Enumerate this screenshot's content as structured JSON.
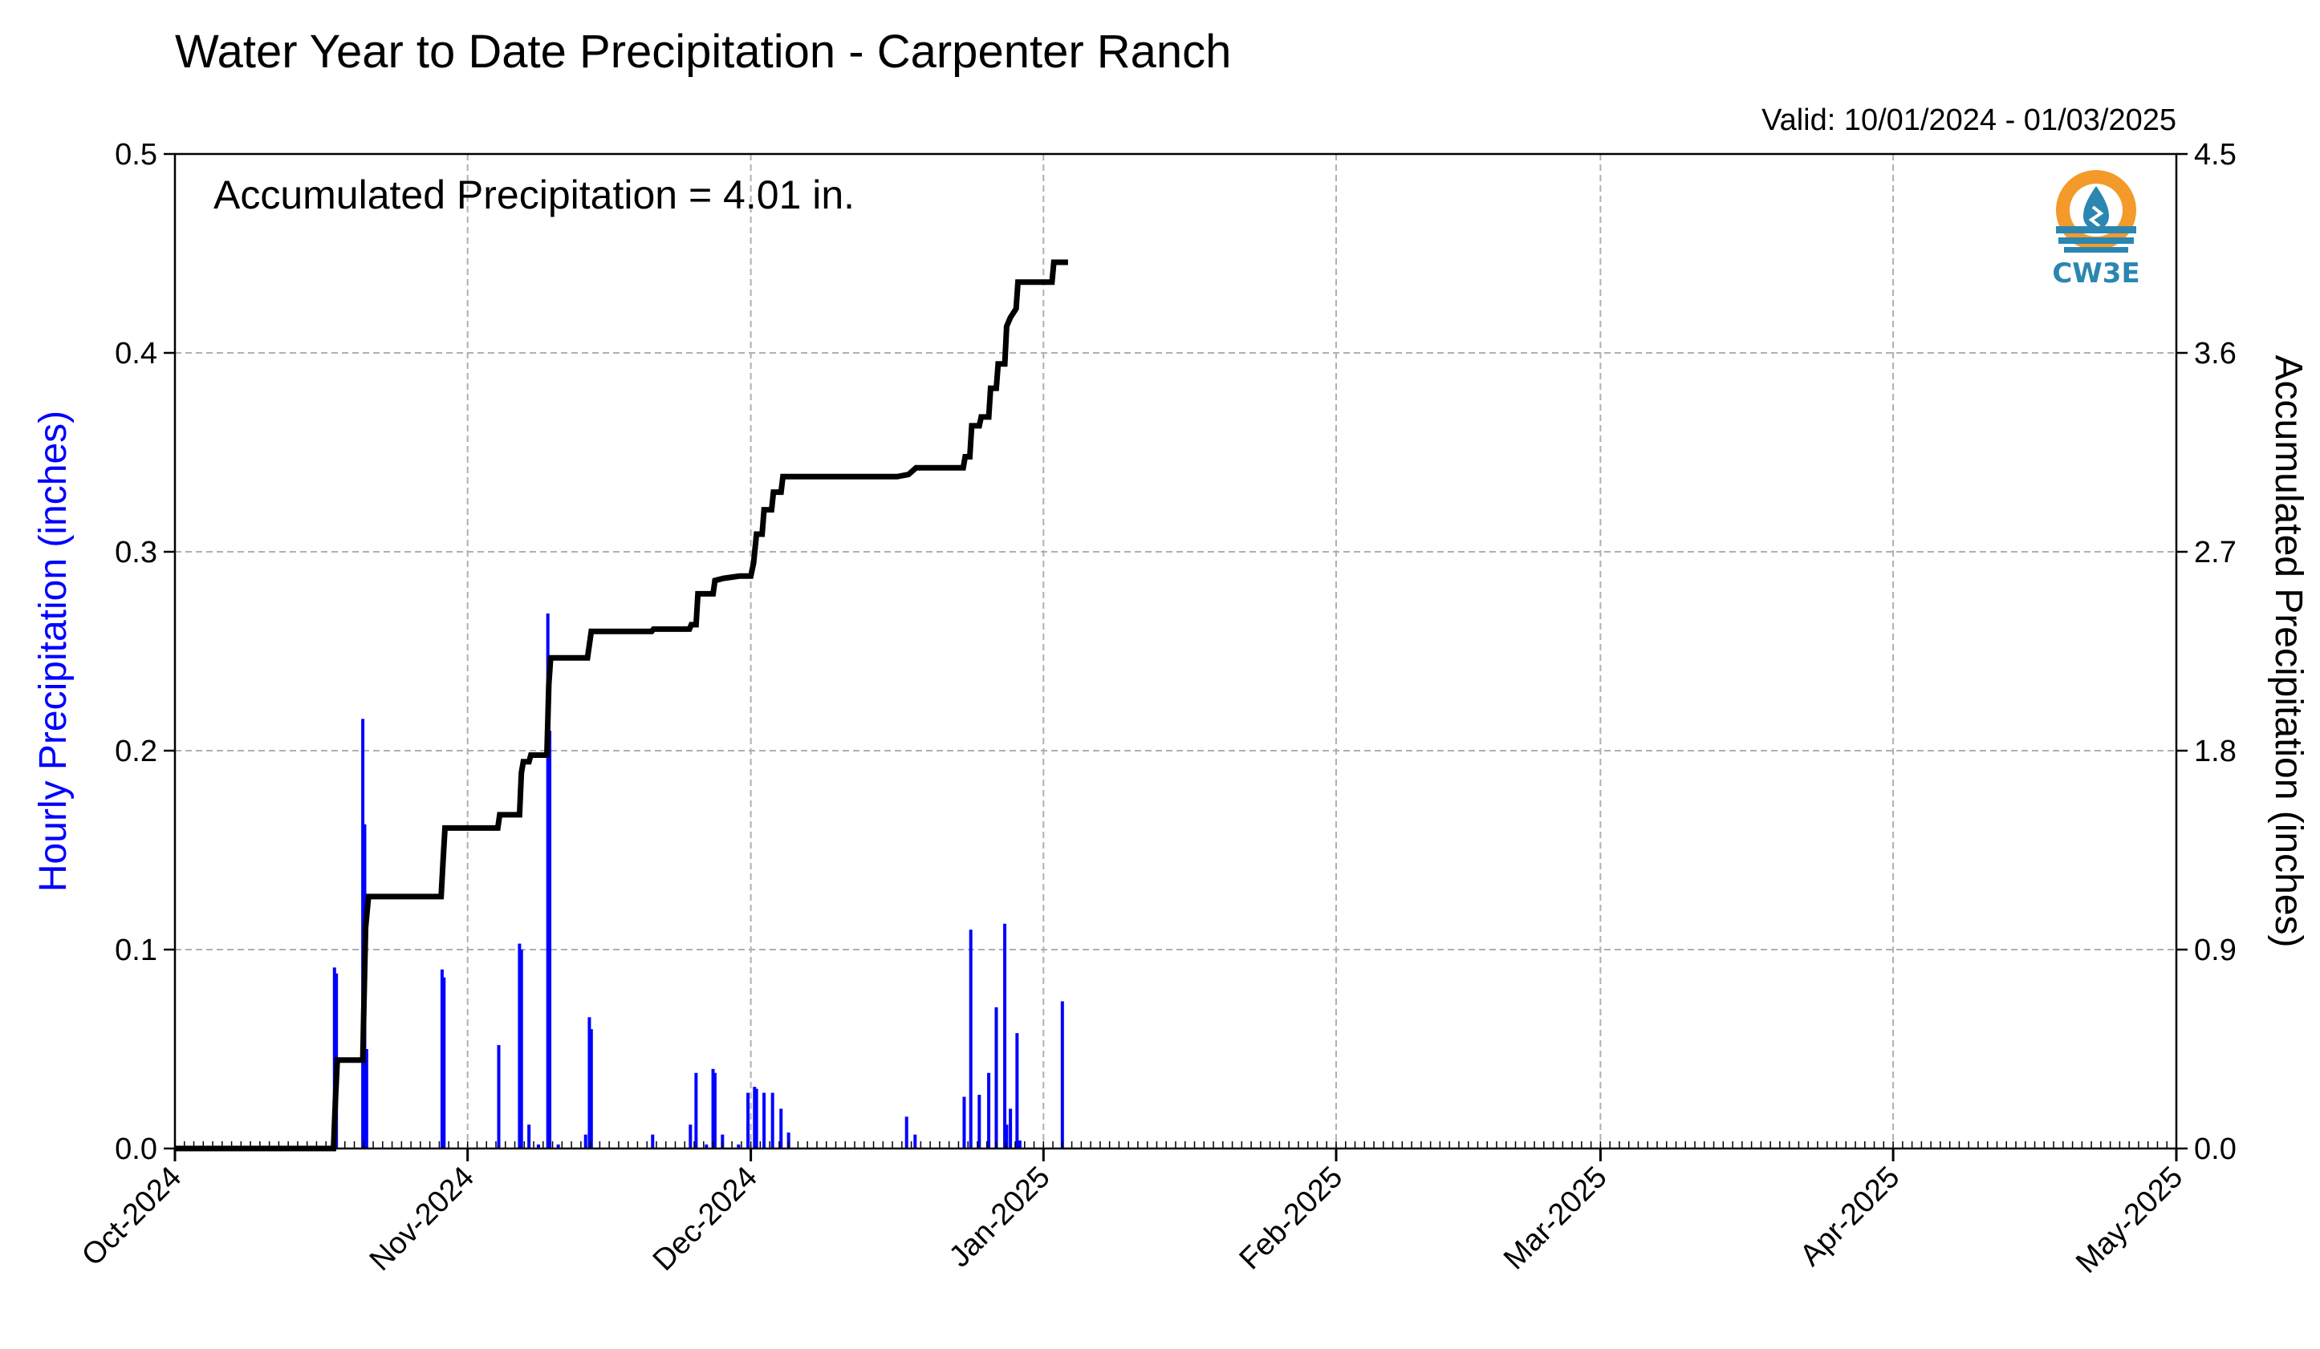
{
  "chart_data": {
    "type": "bar+line",
    "title": "Water Year to Date Precipitation - Carpenter Ranch",
    "subtitle": "Valid: 10/01/2024 - 01/03/2025",
    "annotation": "Accumulated Precipitation = 4.01 in.",
    "logo_text": "CW3E",
    "ylabel_left": "Hourly Precipitation (inches)",
    "ylabel_right": "Accumulated Precipitation (inches)",
    "ylim_left": [
      0,
      0.5
    ],
    "ylim_right": [
      0,
      4.5
    ],
    "yticks_left": [
      "0.0",
      "0.1",
      "0.2",
      "0.3",
      "0.4",
      "0.5"
    ],
    "yticks_right": [
      "0.0",
      "0.9",
      "1.8",
      "2.7",
      "3.6",
      "4.5"
    ],
    "xlim_days": [
      0,
      212
    ],
    "xticks": [
      {
        "day": 0,
        "label": "Oct-2024"
      },
      {
        "day": 31,
        "label": "Nov-2024"
      },
      {
        "day": 61,
        "label": "Dec-2024"
      },
      {
        "day": 92,
        "label": "Jan-2025"
      },
      {
        "day": 123,
        "label": "Feb-2025"
      },
      {
        "day": 151,
        "label": "Mar-2025"
      },
      {
        "day": 182,
        "label": "Apr-2025"
      },
      {
        "day": 212,
        "label": "May-2025"
      }
    ],
    "grid": true,
    "colors": {
      "bars": "#0000ff",
      "line": "#000000",
      "left_label": "#0000ff",
      "right_label": "#000000",
      "grid": "#b0b0b0"
    },
    "series": [
      {
        "kind": "bar",
        "axis": "left",
        "points": [
          [
            16.9,
            0.091
          ],
          [
            17.1,
            0.088
          ],
          [
            19.9,
            0.216
          ],
          [
            20.1,
            0.163
          ],
          [
            20.3,
            0.05
          ],
          [
            28.3,
            0.09
          ],
          [
            28.5,
            0.086
          ],
          [
            34.3,
            0.052
          ],
          [
            36.5,
            0.103
          ],
          [
            36.7,
            0.1
          ],
          [
            37.5,
            0.012
          ],
          [
            38.5,
            0.002
          ],
          [
            39.5,
            0.269
          ],
          [
            39.7,
            0.21
          ],
          [
            40.6,
            0.002
          ],
          [
            43.5,
            0.007
          ],
          [
            43.9,
            0.066
          ],
          [
            44.1,
            0.06
          ],
          [
            50.6,
            0.007
          ],
          [
            54.6,
            0.012
          ],
          [
            55.2,
            0.038
          ],
          [
            56.3,
            0.002
          ],
          [
            57.0,
            0.04
          ],
          [
            57.2,
            0.038
          ],
          [
            58.0,
            0.007
          ],
          [
            59.7,
            0.002
          ],
          [
            60.7,
            0.028
          ],
          [
            61.4,
            0.031
          ],
          [
            61.6,
            0.03
          ],
          [
            62.4,
            0.028
          ],
          [
            63.3,
            0.028
          ],
          [
            64.2,
            0.02
          ],
          [
            65.0,
            0.008
          ],
          [
            77.5,
            0.016
          ],
          [
            78.4,
            0.007
          ],
          [
            83.6,
            0.026
          ],
          [
            84.3,
            0.11
          ],
          [
            85.2,
            0.027
          ],
          [
            86.2,
            0.038
          ],
          [
            87.0,
            0.071
          ],
          [
            87.9,
            0.113
          ],
          [
            88.1,
            0.012
          ],
          [
            88.5,
            0.02
          ],
          [
            89.2,
            0.058
          ],
          [
            89.5,
            0.004
          ],
          [
            94.0,
            0.074
          ]
        ]
      },
      {
        "kind": "line",
        "axis": "right",
        "points": [
          [
            0,
            0
          ],
          [
            16.8,
            0
          ],
          [
            17.0,
            0.22
          ],
          [
            17.2,
            0.4
          ],
          [
            19.9,
            0.4
          ],
          [
            20.0,
            0.62
          ],
          [
            20.2,
            1.0
          ],
          [
            20.5,
            1.14
          ],
          [
            28.2,
            1.14
          ],
          [
            28.4,
            1.3
          ],
          [
            28.6,
            1.45
          ],
          [
            34.2,
            1.45
          ],
          [
            34.4,
            1.51
          ],
          [
            36.5,
            1.51
          ],
          [
            36.7,
            1.7
          ],
          [
            36.9,
            1.75
          ],
          [
            37.5,
            1.75
          ],
          [
            37.7,
            1.78
          ],
          [
            39.4,
            1.78
          ],
          [
            39.6,
            2.1
          ],
          [
            39.8,
            2.22
          ],
          [
            43.7,
            2.22
          ],
          [
            44.1,
            2.34
          ],
          [
            50.5,
            2.34
          ],
          [
            50.7,
            2.35
          ],
          [
            54.5,
            2.35
          ],
          [
            54.7,
            2.37
          ],
          [
            55.2,
            2.37
          ],
          [
            55.4,
            2.51
          ],
          [
            57.0,
            2.51
          ],
          [
            57.2,
            2.57
          ],
          [
            58.1,
            2.58
          ],
          [
            59.8,
            2.59
          ],
          [
            61.0,
            2.59
          ],
          [
            61.3,
            2.65
          ],
          [
            61.6,
            2.78
          ],
          [
            62.2,
            2.78
          ],
          [
            62.4,
            2.89
          ],
          [
            63.2,
            2.89
          ],
          [
            63.4,
            2.97
          ],
          [
            64.2,
            2.97
          ],
          [
            64.4,
            3.04
          ],
          [
            76.5,
            3.04
          ],
          [
            77.7,
            3.05
          ],
          [
            78.5,
            3.08
          ],
          [
            83.5,
            3.08
          ],
          [
            83.7,
            3.13
          ],
          [
            84.2,
            3.13
          ],
          [
            84.4,
            3.27
          ],
          [
            85.2,
            3.27
          ],
          [
            85.4,
            3.31
          ],
          [
            86.2,
            3.31
          ],
          [
            86.4,
            3.44
          ],
          [
            87.0,
            3.44
          ],
          [
            87.2,
            3.55
          ],
          [
            87.9,
            3.55
          ],
          [
            88.1,
            3.72
          ],
          [
            88.5,
            3.76
          ],
          [
            89.1,
            3.8
          ],
          [
            89.3,
            3.92
          ],
          [
            92.9,
            3.92
          ],
          [
            93.1,
            4.01
          ],
          [
            94.6,
            4.01
          ]
        ]
      }
    ]
  }
}
